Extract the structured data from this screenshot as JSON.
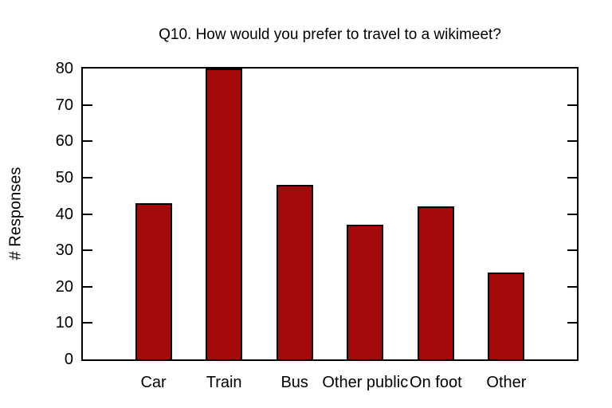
{
  "chart_data": {
    "type": "bar",
    "title": "Q10. How would you prefer to travel to a wikimeet?",
    "categories": [
      "Car",
      "Train",
      "Bus",
      "Other public",
      "On foot",
      "Other"
    ],
    "values": [
      43,
      80,
      48,
      37,
      42,
      24
    ],
    "xlabel": "",
    "ylabel": "# Responses",
    "ylim": [
      0,
      80
    ],
    "ytick_step": 10,
    "yticks": [
      0,
      10,
      20,
      30,
      40,
      50,
      60,
      70,
      80
    ],
    "grid": false,
    "legend": "none",
    "bar_color": "#a40a0a",
    "bar_border_color": "#000000",
    "axis_color": "#000000",
    "text_color": "#000000",
    "background_color": "#ffffff"
  }
}
